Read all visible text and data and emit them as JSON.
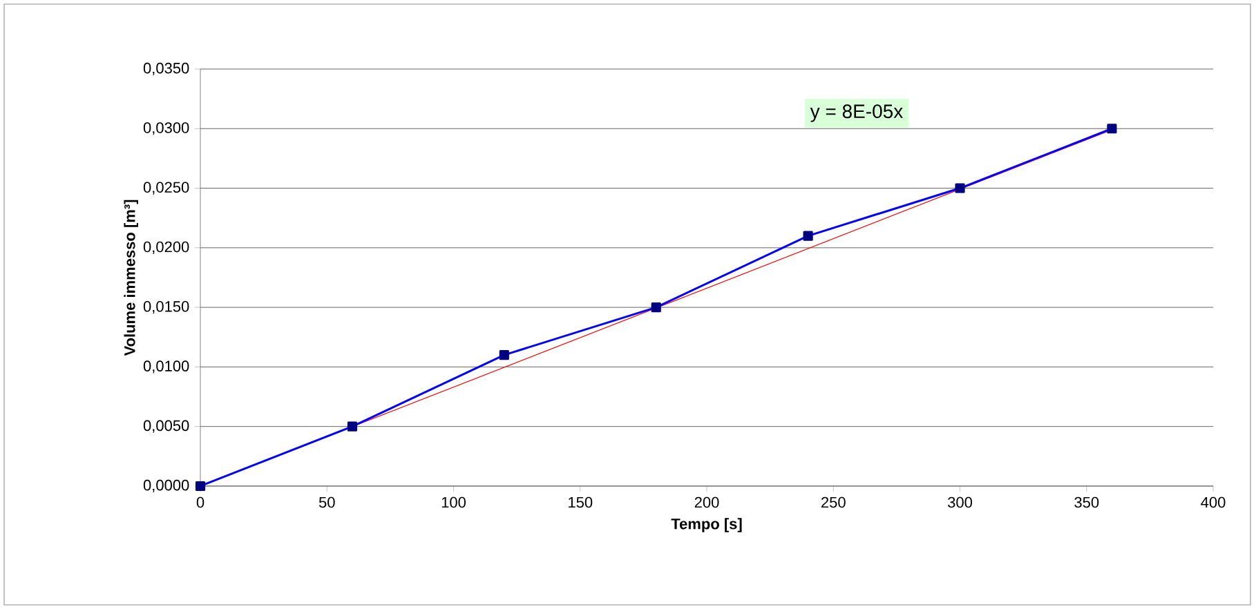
{
  "chart_data": {
    "type": "line",
    "xlabel": "Tempo [s]",
    "ylabel": "Volume immesso [m³]",
    "annotations": [
      "y = 8E-05x"
    ],
    "series": [
      {
        "x": [
          0,
          60,
          120,
          180,
          240,
          300,
          360
        ],
        "values": [
          0,
          0.005,
          0.011,
          0.015,
          0.021,
          0.025,
          0.03
        ],
        "color": "#0000ff",
        "marker": "square"
      },
      {
        "x": [
          0,
          360
        ],
        "values": [
          0,
          0.0299
        ],
        "color": "#ff0000",
        "marker": "none"
      }
    ],
    "xlim": [
      0,
      400
    ],
    "xticks": [
      0,
      50,
      100,
      150,
      200,
      250,
      300,
      350,
      400
    ],
    "ylim": [
      0,
      0.035
    ],
    "yticks": [
      {
        "value": 0,
        "label": "0,0000"
      },
      {
        "value": 0.005,
        "label": "0,0050"
      },
      {
        "value": 0.01,
        "label": "0,0100"
      },
      {
        "value": 0.015,
        "label": "0,0150"
      },
      {
        "value": 0.02,
        "label": "0,0200"
      },
      {
        "value": 0.025,
        "label": "0,0250"
      },
      {
        "value": 0.03,
        "label": "0,0300"
      },
      {
        "value": 0.035,
        "label": "0,0350"
      }
    ],
    "grid": "y"
  }
}
